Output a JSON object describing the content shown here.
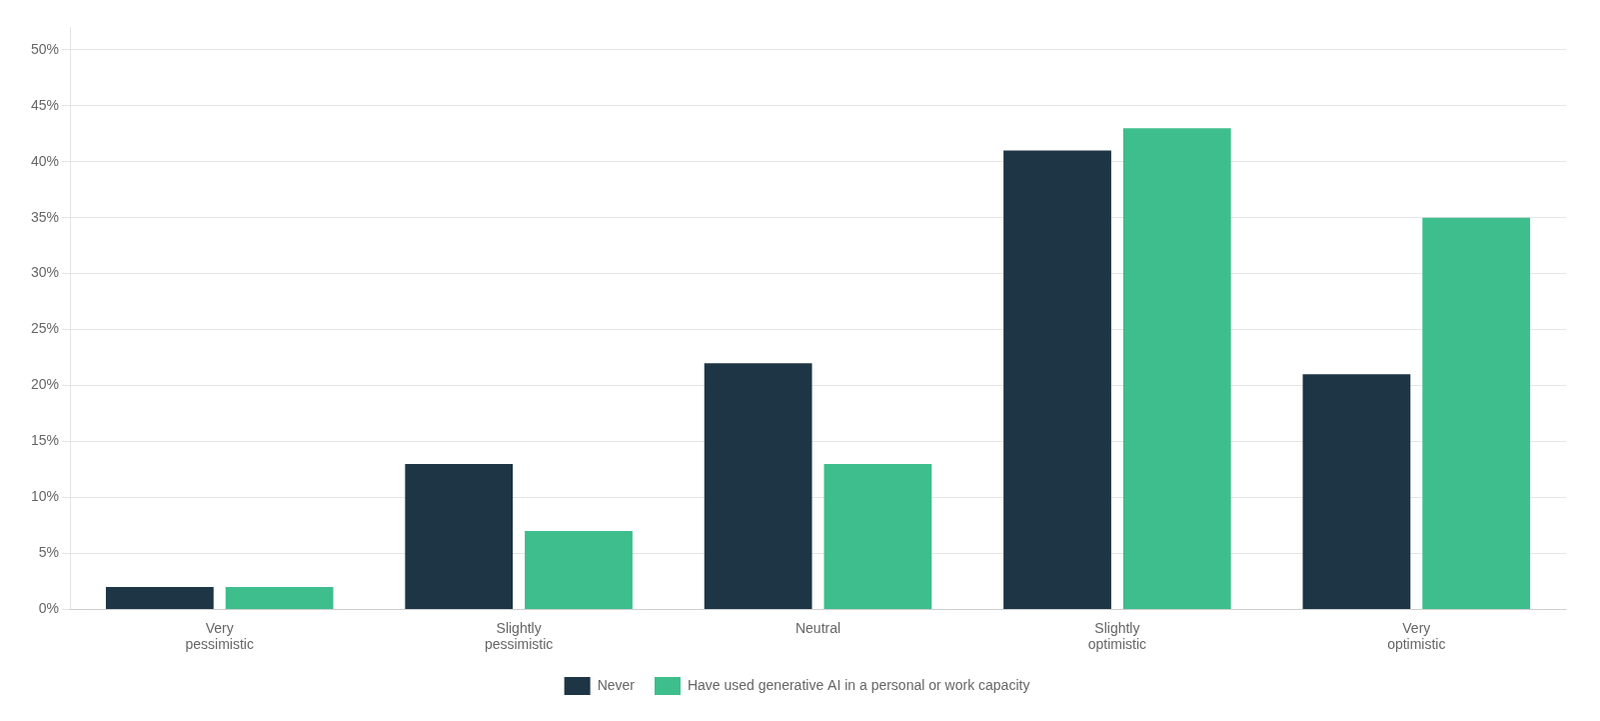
{
  "chart_data": {
    "type": "bar",
    "categories": [
      "Very\npessimistic",
      "Slightly\npessimistic",
      "Neutral",
      "Slightly\noptimistic",
      "Very\noptimistic"
    ],
    "series": [
      {
        "name": "Never",
        "color": "#1d3545",
        "values": [
          2,
          13,
          22,
          41,
          21
        ]
      },
      {
        "name": "Have used generative AI in a personal or work capacity",
        "color": "#3dbe8c",
        "values": [
          2,
          7,
          13,
          43,
          35
        ]
      }
    ],
    "ylim": [
      0,
      52
    ],
    "yticks": [
      {
        "value": 0,
        "label": "0%"
      },
      {
        "value": 5,
        "label": "5%"
      },
      {
        "value": 10,
        "label": "10%"
      },
      {
        "value": 15,
        "label": "15%"
      },
      {
        "value": 20,
        "label": "20%"
      },
      {
        "value": 25,
        "label": "25%"
      },
      {
        "value": 30,
        "label": "30%"
      },
      {
        "value": 35,
        "label": "35%"
      },
      {
        "value": 40,
        "label": "40%"
      },
      {
        "value": 45,
        "label": "45%"
      },
      {
        "value": 50,
        "label": "50%"
      }
    ],
    "grid": true,
    "legend": "bottom"
  }
}
